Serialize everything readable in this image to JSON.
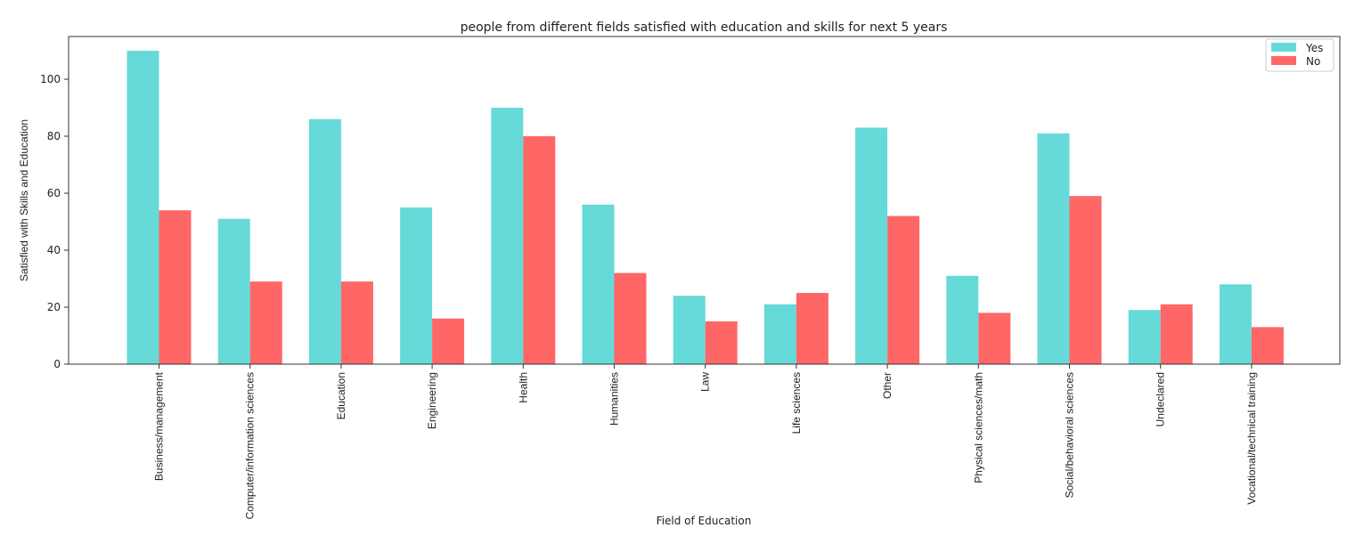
{
  "chart_data": {
    "type": "bar",
    "title": "people from different fields satisfied with education and skills for next 5 years",
    "xlabel": "Field of Education",
    "ylabel": "Satisfied with Skills and Education",
    "ylim": [
      0,
      115
    ],
    "yticks": [
      0,
      20,
      40,
      60,
      80,
      100
    ],
    "categories": [
      "Business/management",
      "Computer/information sciences",
      "Education",
      "Engineering",
      "Health",
      "Humanities",
      "Law",
      "Life sciences",
      "Other",
      "Physical sciences/math",
      "Social/behavioral sciences",
      "Undeclared",
      "Vocational/technical training"
    ],
    "series": [
      {
        "name": "Yes",
        "color": "#66d9d9",
        "values": [
          110,
          51,
          86,
          55,
          90,
          56,
          24,
          21,
          83,
          31,
          81,
          19,
          28
        ]
      },
      {
        "name": "No",
        "color": "#ff6666",
        "values": [
          54,
          29,
          29,
          16,
          80,
          32,
          15,
          25,
          52,
          18,
          59,
          21,
          13
        ]
      }
    ],
    "legend": "top-right",
    "grid": false
  }
}
